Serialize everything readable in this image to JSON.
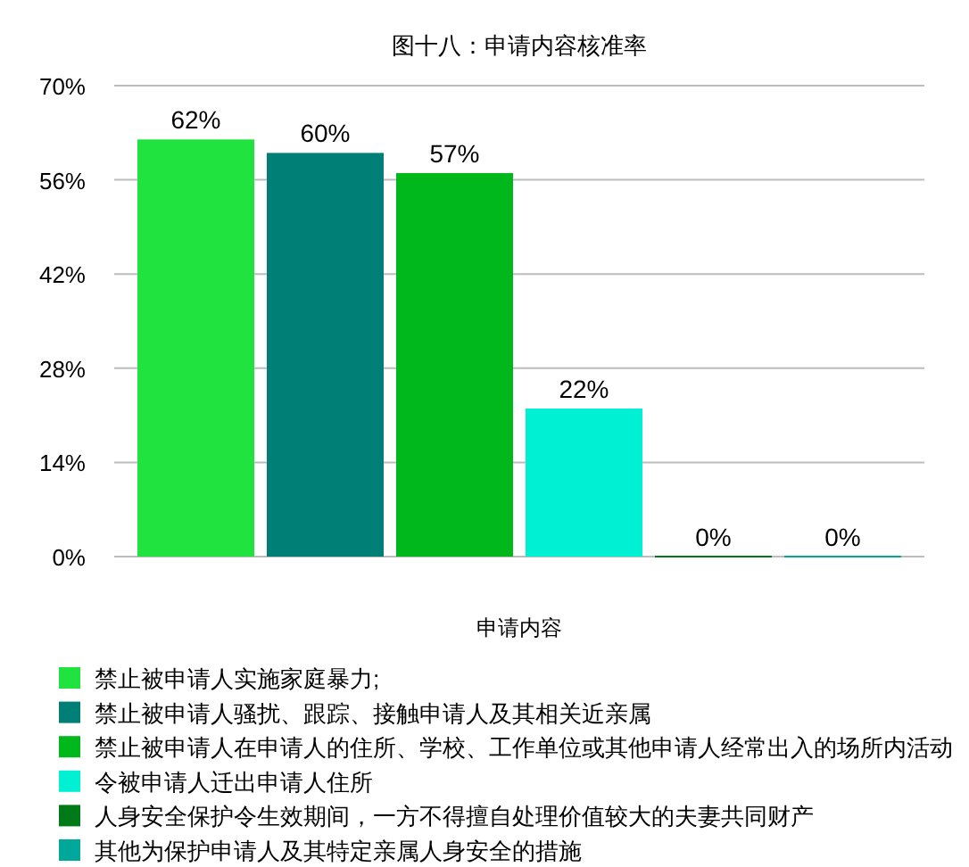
{
  "chart_data": {
    "type": "bar",
    "title": "图十八：申请内容核准率",
    "xlabel": "申请内容",
    "categories": [
      null
    ],
    "series": [
      {
        "name": "禁止被申请人实施家庭暴力;",
        "color": "#21e33f",
        "values": [
          62
        ],
        "value_labels": [
          "62%"
        ]
      },
      {
        "name": "禁止被申请人骚扰、跟踪、接触申请人及其相关近亲属",
        "color": "#007f77",
        "values": [
          60
        ],
        "value_labels": [
          "60%"
        ]
      },
      {
        "name": "禁止被申请人在申请人的住所、学校、工作单位或其他申请人经常出入的场所内活动",
        "color": "#00b81c",
        "values": [
          57
        ],
        "value_labels": [
          "57%"
        ]
      },
      {
        "name": "令被申请人迁出申请人住所",
        "color": "#00f0d4",
        "values": [
          22
        ],
        "value_labels": [
          "22%"
        ]
      },
      {
        "name": "人身安全保护令生效期间，一方不得擅自处理价值较大的夫妻共同财产",
        "color": "#007a18",
        "values": [
          0
        ],
        "value_labels": [
          "0%"
        ]
      },
      {
        "name": "其他为保护申请人及其特定亲属人身安全的措施",
        "color": "#00a89b",
        "values": [
          0
        ],
        "value_labels": [
          "0%"
        ]
      }
    ],
    "ylim": [
      0,
      70
    ],
    "yticks": [
      {
        "value": 0,
        "label": "0%"
      },
      {
        "value": 14,
        "label": "14%"
      },
      {
        "value": 28,
        "label": "28%"
      },
      {
        "value": 42,
        "label": "42%"
      },
      {
        "value": 56,
        "label": "56%"
      },
      {
        "value": 70,
        "label": "70%"
      }
    ],
    "grid": "y",
    "legend": "bottom"
  }
}
